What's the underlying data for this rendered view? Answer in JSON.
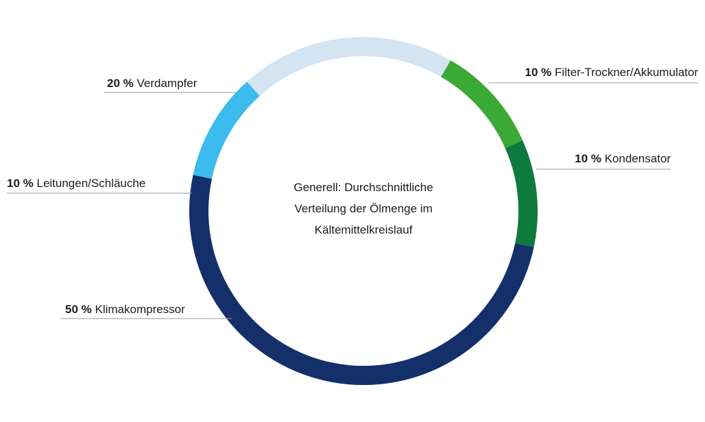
{
  "chart_data": {
    "type": "pie",
    "style": "donut",
    "center_text": [
      "Generell: Durchschnittliche",
      "Verteilung der Ölmenge im",
      "Kältemittelkreislauf"
    ],
    "slices": [
      {
        "label": "Filter-Trockner/Akkumulator",
        "value": 10,
        "value_text": "10 %",
        "color": "#3aaa35"
      },
      {
        "label": "Kondensator",
        "value": 10,
        "value_text": "10 %",
        "color": "#0f7a3d"
      },
      {
        "label": "Klimakompressor",
        "value": 50,
        "value_text": "50 %",
        "color": "#13306b"
      },
      {
        "label": "Leitungen/Schläuche",
        "value": 10,
        "value_text": "10 %",
        "color": "#3bbbee"
      },
      {
        "label": "Verdampfer",
        "value": 20,
        "value_text": "20 %",
        "color": "#d3e4f3"
      }
    ]
  }
}
